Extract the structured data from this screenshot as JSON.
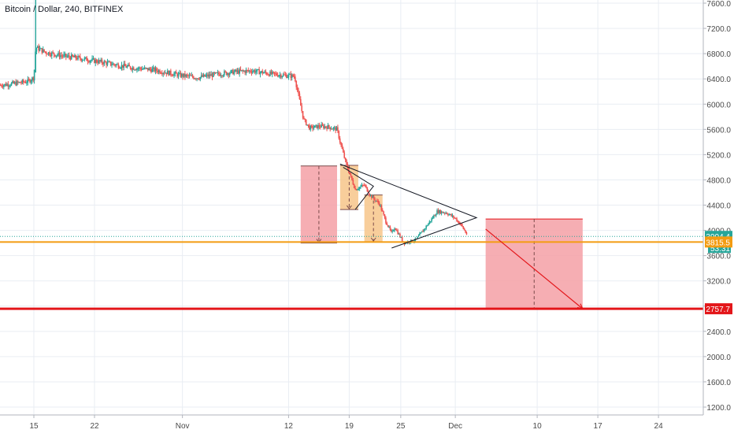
{
  "header": {
    "title": "Bitcoin / Dollar, 240, BITFINEX"
  },
  "colors": {
    "up": "#26a69a",
    "down": "#ef5350",
    "grid": "#e9edf3",
    "axis_text": "#4a4a4a",
    "orange": "#f39c12",
    "red_line": "#e3161a",
    "pink_zone": "#f4a0a6",
    "orange_zone": "#f7c68a",
    "last_price_bg": "#26a69a",
    "dark": "#131722"
  },
  "chart_data": {
    "type": "candlestick",
    "title": "Bitcoin / Dollar, 240, BITFINEX",
    "symbol": "Bitcoin / Dollar",
    "exchange": "BITFINEX",
    "interval": "240",
    "xlabel": "",
    "ylabel": "",
    "ylim": [
      1000,
      7700
    ],
    "y_ticks": [
      1200,
      1600,
      2000,
      2400,
      2800,
      3200,
      3600,
      4000,
      4400,
      4800,
      5200,
      5600,
      6000,
      6400,
      6800,
      7200,
      7600
    ],
    "y_tick_labels": [
      "1200.0",
      "1600.0",
      "2000.0",
      "2400.0",
      "2800.0",
      "3200.0",
      "3600.0",
      "4000.0",
      "4400.0",
      "4800.0",
      "5200.0",
      "5600.0",
      "6000.0",
      "6400.0",
      "6800.0",
      "7200.0",
      "7600.0"
    ],
    "x_day_range": [
      15,
      32
    ],
    "x_ticks": [
      {
        "label": "15",
        "day": 15.0
      },
      {
        "label": "22",
        "day": 16.0
      },
      {
        "label": "Nov",
        "day": 17.45
      },
      {
        "label": "12",
        "day": 19.2
      },
      {
        "label": "19",
        "day": 20.2
      },
      {
        "label": "25",
        "day": 21.05
      },
      {
        "label": "Dec",
        "day": 21.95
      },
      {
        "label": "10",
        "day": 23.3
      },
      {
        "label": "17",
        "day": 24.3
      },
      {
        "label": "24",
        "day": 25.3
      }
    ],
    "grid": true,
    "price_path": [
      [
        14.45,
        6300
      ],
      [
        14.7,
        6330
      ],
      [
        14.9,
        6360
      ],
      [
        15.0,
        6420
      ],
      [
        15.03,
        6900
      ],
      [
        15.2,
        6820
      ],
      [
        15.5,
        6760
      ],
      [
        15.8,
        6720
      ],
      [
        16.2,
        6650
      ],
      [
        16.6,
        6580
      ],
      [
        17.0,
        6540
      ],
      [
        17.4,
        6460
      ],
      [
        17.7,
        6420
      ],
      [
        18.0,
        6470
      ],
      [
        18.3,
        6510
      ],
      [
        18.6,
        6530
      ],
      [
        18.9,
        6480
      ],
      [
        19.1,
        6460
      ],
      [
        19.3,
        6440
      ],
      [
        19.35,
        6200
      ],
      [
        19.45,
        5750
      ],
      [
        19.55,
        5620
      ],
      [
        19.7,
        5650
      ],
      [
        19.85,
        5640
      ],
      [
        20.0,
        5600
      ],
      [
        20.05,
        5400
      ],
      [
        20.15,
        5050
      ],
      [
        20.3,
        4650
      ],
      [
        20.45,
        4720
      ],
      [
        20.55,
        4550
      ],
      [
        20.7,
        4420
      ],
      [
        20.8,
        4150
      ],
      [
        20.9,
        3950
      ],
      [
        20.95,
        4050
      ],
      [
        21.1,
        3800
      ],
      [
        21.3,
        3850
      ],
      [
        21.5,
        4100
      ],
      [
        21.65,
        4300
      ],
      [
        21.8,
        4280
      ],
      [
        21.95,
        4190
      ],
      [
        22.05,
        4080
      ],
      [
        22.15,
        3920
      ]
    ],
    "spike_high": {
      "day": 15.03,
      "value": 7650
    },
    "horizontal_levels": [
      {
        "value": 3815.5,
        "label": "3815.5",
        "color": "orange"
      },
      {
        "value": 2757.7,
        "label": "2757.7",
        "color": "red"
      }
    ],
    "last_price": {
      "value": 3904.4,
      "label": "3904.4",
      "countdown": "53:31"
    },
    "triangle": {
      "apex": [
        22.3,
        4200
      ],
      "upper_start": [
        20.05,
        5050
      ],
      "lower_start": [
        20.9,
        3720
      ]
    },
    "inner_pennant": [
      [
        20.1,
        5000
      ],
      [
        20.6,
        4700
      ],
      [
        20.3,
        4330
      ]
    ],
    "measured_moves": [
      {
        "x_from": 19.4,
        "x_to": 20.0,
        "y_from": 5020,
        "y_to": 3800,
        "color": "pink"
      },
      {
        "x_from": 20.05,
        "x_to": 20.35,
        "y_from": 5030,
        "y_to": 4330,
        "color": "orange"
      },
      {
        "x_from": 20.45,
        "x_to": 20.75,
        "y_from": 4560,
        "y_to": 3820,
        "color": "orange"
      }
    ],
    "target_zone": {
      "x_from": 22.45,
      "x_to": 24.05,
      "y_from": 4180,
      "y_to": 2757.7
    },
    "projection_arrow": {
      "from": [
        22.45,
        4020
      ],
      "to": [
        24.05,
        2757.7
      ]
    }
  }
}
